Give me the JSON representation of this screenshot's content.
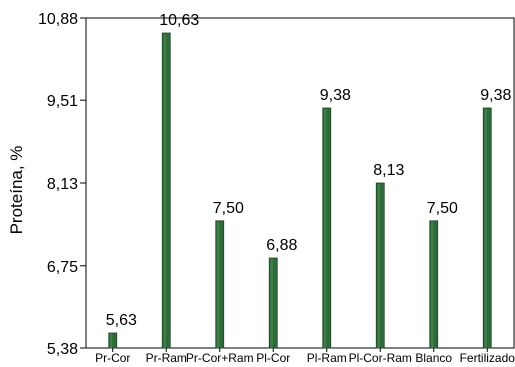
{
  "chart_data": {
    "type": "bar",
    "ylabel": "Proteína, %",
    "xlabel": "",
    "categories": [
      "Pr-Cor",
      "Pr-Ram",
      "Pr-Cor+Ram",
      "Pl-Cor",
      "Pl-Ram",
      "Pl-Cor-Ram",
      "Blanco",
      "Fertilizado"
    ],
    "values": [
      5.63,
      10.63,
      7.5,
      6.88,
      9.38,
      8.13,
      7.5,
      9.38
    ],
    "value_labels": [
      "5,63",
      "10,63",
      "7,50",
      "6,88",
      "9,38",
      "8,13",
      "7,50",
      "9,38"
    ],
    "yticks": [
      5.38,
      6.75,
      8.13,
      9.51,
      10.88
    ],
    "ytick_labels": [
      "5,38",
      "6,75",
      "8,13",
      "9,51",
      "10,88"
    ],
    "ylim": [
      5.38,
      10.88
    ],
    "grid": false,
    "legend": "none",
    "bar_color": "#2f6b3a"
  }
}
